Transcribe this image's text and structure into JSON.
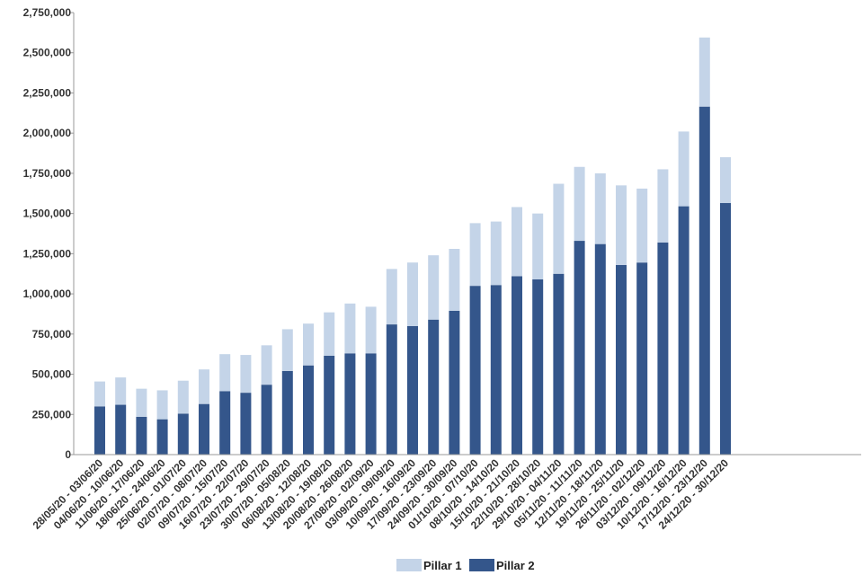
{
  "chart_data": {
    "type": "bar",
    "stacked": true,
    "title": "",
    "xlabel": "",
    "ylabel": "",
    "ylim": [
      0,
      2750000
    ],
    "y_ticks": [
      0,
      250000,
      500000,
      750000,
      1000000,
      1250000,
      1500000,
      1750000,
      2000000,
      2250000,
      2500000,
      2750000
    ],
    "y_tick_labels": [
      "0",
      "250,000",
      "500,000",
      "750,000",
      "1,000,000",
      "1,250,000",
      "1,500,000",
      "1,750,000",
      "2,000,000",
      "2,250,000",
      "2,500,000",
      "2,750,000"
    ],
    "grid": false,
    "legend_position": "bottom-center",
    "categories": [
      "28/05/20 - 03/06/20",
      "04/06/20 - 10/06/20",
      "11/06/20 - 17/06/20",
      "18/06/20 - 24/06/20",
      "25/06/20 - 01/07/20",
      "02/07/20 - 08/07/20",
      "09/07/20 - 15/07/20",
      "16/07/20 - 22/07/20",
      "23/07/20 - 29/07/20",
      "30/07/20 - 05/08/20",
      "06/08/20 - 12/08/20",
      "13/08/20 - 19/08/20",
      "20/08/20 - 26/08/20",
      "27/08/20 - 02/09/20",
      "03/09/20 - 09/09/20",
      "10/09/20 - 16/09/20",
      "17/09/20 - 23/09/20",
      "24/09/20 - 30/09/20",
      "01/10/20 - 07/10/20",
      "08/10/20 - 14/10/20",
      "15/10/20 - 21/10/20",
      "22/10/20 - 28/10/20",
      "29/10/20 - 04/11/20",
      "05/11/20 - 11/11/20",
      "12/11/20 - 18/11/20",
      "19/11/20 - 25/11/20",
      "26/11/20 - 02/12/20",
      "03/12/20 - 09/12/20",
      "10/12/20 - 16/12/20",
      "17/12/20 - 23/12/20",
      "24/12/20 - 30/12/20"
    ],
    "series": [
      {
        "name": "Pillar 2",
        "color": "#34568b",
        "values": [
          300000,
          310000,
          235000,
          220000,
          255000,
          315000,
          395000,
          385000,
          435000,
          520000,
          555000,
          615000,
          630000,
          630000,
          810000,
          800000,
          840000,
          895000,
          1050000,
          1055000,
          1110000,
          1090000,
          1125000,
          1330000,
          1310000,
          1180000,
          1195000,
          1320000,
          1545000,
          2165000,
          1565000
        ]
      },
      {
        "name": "Pillar 1",
        "color": "#c4d4e8",
        "values": [
          155000,
          170000,
          175000,
          180000,
          205000,
          215000,
          230000,
          235000,
          245000,
          260000,
          260000,
          270000,
          310000,
          290000,
          345000,
          395000,
          400000,
          385000,
          390000,
          395000,
          430000,
          410000,
          560000,
          460000,
          440000,
          495000,
          460000,
          455000,
          465000,
          430000,
          285000
        ]
      }
    ],
    "legend": [
      "Pillar 1",
      "Pillar 2"
    ]
  }
}
